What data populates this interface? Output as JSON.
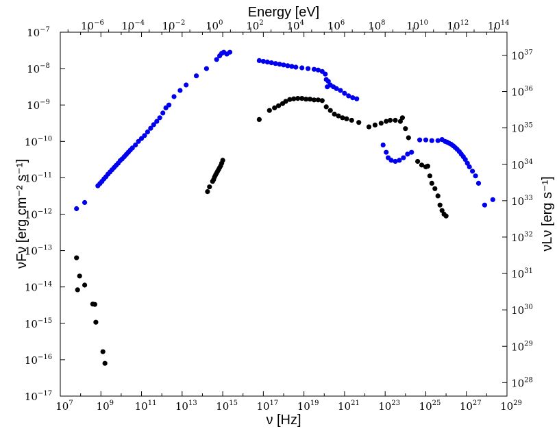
{
  "chart_data": {
    "type": "scatter",
    "title": "",
    "top_axis_label": "Energy [eV]",
    "xlabel": "ν [Hz]",
    "ylabel": "νFν [erg cm⁻² s⁻¹]",
    "right_ylabel": "νLν [erg s⁻¹]",
    "xscale": "log",
    "yscale": "log",
    "xlim_log10": [
      7,
      29
    ],
    "ylim_log10": [
      -17,
      -7
    ],
    "top_xlim_log10_eV": [
      -7.38,
      14.62
    ],
    "right_ylim_log10": [
      27.63,
      37.63
    ],
    "grid": false,
    "legend": null,
    "x_ticks": [
      {
        "value": 7,
        "base": "10",
        "exp": "7"
      },
      {
        "value": 9,
        "base": "10",
        "exp": "9"
      },
      {
        "value": 11,
        "base": "10",
        "exp": "11"
      },
      {
        "value": 13,
        "base": "10",
        "exp": "13"
      },
      {
        "value": 15,
        "base": "10",
        "exp": "15"
      },
      {
        "value": 17,
        "base": "10",
        "exp": "17"
      },
      {
        "value": 19,
        "base": "10",
        "exp": "19"
      },
      {
        "value": 21,
        "base": "10",
        "exp": "21"
      },
      {
        "value": 23,
        "base": "10",
        "exp": "23"
      },
      {
        "value": 25,
        "base": "10",
        "exp": "25"
      },
      {
        "value": 27,
        "base": "10",
        "exp": "27"
      },
      {
        "value": 29,
        "base": "10",
        "exp": "29"
      }
    ],
    "top_x_ticks": [
      {
        "value": -6,
        "base": "10",
        "exp": "−6"
      },
      {
        "value": -4,
        "base": "10",
        "exp": "−4"
      },
      {
        "value": -2,
        "base": "10",
        "exp": "−2"
      },
      {
        "value": 0,
        "base": "10",
        "exp": "0"
      },
      {
        "value": 2,
        "base": "10",
        "exp": "2"
      },
      {
        "value": 4,
        "base": "10",
        "exp": "4"
      },
      {
        "value": 6,
        "base": "10",
        "exp": "6"
      },
      {
        "value": 8,
        "base": "10",
        "exp": "8"
      },
      {
        "value": 10,
        "base": "10",
        "exp": "10"
      },
      {
        "value": 12,
        "base": "10",
        "exp": "12"
      },
      {
        "value": 14,
        "base": "10",
        "exp": "14"
      }
    ],
    "y_ticks": [
      {
        "value": -7,
        "base": "10",
        "exp": "−7"
      },
      {
        "value": -8,
        "base": "10",
        "exp": "−8"
      },
      {
        "value": -9,
        "base": "10",
        "exp": "−9"
      },
      {
        "value": -10,
        "base": "10",
        "exp": "−10"
      },
      {
        "value": -11,
        "base": "10",
        "exp": "−11"
      },
      {
        "value": -12,
        "base": "10",
        "exp": "−12"
      },
      {
        "value": -13,
        "base": "10",
        "exp": "−13"
      },
      {
        "value": -14,
        "base": "10",
        "exp": "−14"
      },
      {
        "value": -15,
        "base": "10",
        "exp": "−15"
      },
      {
        "value": -16,
        "base": "10",
        "exp": "−16"
      },
      {
        "value": -17,
        "base": "10",
        "exp": "−17"
      }
    ],
    "right_y_ticks": [
      {
        "value": 37,
        "base": "10",
        "exp": "37"
      },
      {
        "value": 36,
        "base": "10",
        "exp": "36"
      },
      {
        "value": 35,
        "base": "10",
        "exp": "35"
      },
      {
        "value": 34,
        "base": "10",
        "exp": "34"
      },
      {
        "value": 33,
        "base": "10",
        "exp": "33"
      },
      {
        "value": 32,
        "base": "10",
        "exp": "32"
      },
      {
        "value": 31,
        "base": "10",
        "exp": "31"
      },
      {
        "value": 30,
        "base": "10",
        "exp": "30"
      },
      {
        "value": 29,
        "base": "10",
        "exp": "29"
      },
      {
        "value": 28,
        "base": "10",
        "exp": "28"
      }
    ],
    "series": [
      {
        "color": "#0000ee",
        "points_log10": [
          [
            7.8,
            -11.85
          ],
          [
            8.2,
            -11.68
          ],
          [
            8.85,
            -11.22
          ],
          [
            8.95,
            -11.16
          ],
          [
            9.05,
            -11.1
          ],
          [
            9.15,
            -11.03
          ],
          [
            9.25,
            -10.97
          ],
          [
            9.35,
            -10.9
          ],
          [
            9.45,
            -10.84
          ],
          [
            9.55,
            -10.78
          ],
          [
            9.65,
            -10.72
          ],
          [
            9.75,
            -10.66
          ],
          [
            9.85,
            -10.6
          ],
          [
            9.95,
            -10.53
          ],
          [
            10.05,
            -10.48
          ],
          [
            10.15,
            -10.42
          ],
          [
            10.25,
            -10.36
          ],
          [
            10.35,
            -10.3
          ],
          [
            10.45,
            -10.24
          ],
          [
            10.55,
            -10.18
          ],
          [
            10.7,
            -10.1
          ],
          [
            10.85,
            -10.0
          ],
          [
            11.0,
            -9.92
          ],
          [
            11.15,
            -9.84
          ],
          [
            11.3,
            -9.74
          ],
          [
            11.45,
            -9.64
          ],
          [
            11.6,
            -9.54
          ],
          [
            11.75,
            -9.45
          ],
          [
            11.9,
            -9.35
          ],
          [
            12.05,
            -9.22
          ],
          [
            12.2,
            -9.08
          ],
          [
            12.35,
            -9.0
          ],
          [
            12.6,
            -8.77
          ],
          [
            12.9,
            -8.6
          ],
          [
            13.2,
            -8.45
          ],
          [
            13.7,
            -8.2
          ],
          [
            14.2,
            -8.0
          ],
          [
            14.7,
            -7.75
          ],
          [
            14.85,
            -7.65
          ],
          [
            14.95,
            -7.58
          ],
          [
            15.05,
            -7.55
          ],
          [
            15.2,
            -7.6
          ],
          [
            15.35,
            -7.55
          ],
          [
            16.8,
            -7.78
          ],
          [
            17.0,
            -7.8
          ],
          [
            17.2,
            -7.82
          ],
          [
            17.4,
            -7.84
          ],
          [
            17.6,
            -7.86
          ],
          [
            17.8,
            -7.88
          ],
          [
            18.0,
            -7.9
          ],
          [
            18.2,
            -7.92
          ],
          [
            18.4,
            -7.94
          ],
          [
            18.6,
            -7.96
          ],
          [
            18.9,
            -7.98
          ],
          [
            19.2,
            -8.0
          ],
          [
            19.5,
            -8.02
          ],
          [
            19.7,
            -8.04
          ],
          [
            19.9,
            -8.08
          ],
          [
            20.05,
            -8.15
          ],
          [
            20.1,
            -8.3
          ],
          [
            20.15,
            -8.5
          ],
          [
            20.2,
            -8.35
          ],
          [
            20.3,
            -8.45
          ],
          [
            20.45,
            -8.5
          ],
          [
            20.6,
            -8.55
          ],
          [
            20.8,
            -8.6
          ],
          [
            21.0,
            -8.68
          ],
          [
            21.2,
            -8.75
          ],
          [
            21.4,
            -8.8
          ],
          [
            21.6,
            -8.83
          ],
          [
            24.7,
            -9.96
          ],
          [
            25.0,
            -9.96
          ],
          [
            25.3,
            -9.98
          ],
          [
            25.6,
            -9.98
          ],
          [
            25.8,
            -9.95
          ],
          [
            25.95,
            -10.0
          ],
          [
            26.05,
            -10.02
          ],
          [
            26.15,
            -10.05
          ],
          [
            26.25,
            -10.08
          ],
          [
            26.35,
            -10.12
          ],
          [
            26.45,
            -10.17
          ],
          [
            26.55,
            -10.22
          ],
          [
            26.65,
            -10.28
          ],
          [
            26.75,
            -10.35
          ],
          [
            26.85,
            -10.42
          ],
          [
            26.95,
            -10.5
          ],
          [
            27.05,
            -10.6
          ],
          [
            27.15,
            -10.7
          ],
          [
            27.3,
            -10.82
          ],
          [
            27.45,
            -10.95
          ],
          [
            27.6,
            -11.15
          ],
          [
            27.9,
            -11.75
          ],
          [
            28.3,
            -11.6
          ]
        ]
      },
      {
        "color": "#0000ee",
        "points_log10": [
          [
            22.9,
            -10.1
          ],
          [
            23.05,
            -10.3
          ],
          [
            23.15,
            -10.45
          ],
          [
            23.3,
            -10.52
          ],
          [
            23.5,
            -10.55
          ],
          [
            23.7,
            -10.52
          ],
          [
            23.9,
            -10.45
          ],
          [
            24.1,
            -10.35
          ],
          [
            24.3,
            -10.3
          ]
        ]
      },
      {
        "color": "#000000",
        "points_log10": [
          [
            7.8,
            -13.2
          ],
          [
            7.85,
            -14.08
          ],
          [
            7.95,
            -13.7
          ],
          [
            8.2,
            -13.95
          ],
          [
            8.6,
            -14.47
          ],
          [
            8.7,
            -14.48
          ],
          [
            8.75,
            -14.97
          ],
          [
            9.1,
            -15.78
          ],
          [
            9.2,
            -16.1
          ],
          [
            14.25,
            -11.38
          ],
          [
            14.35,
            -11.25
          ],
          [
            14.5,
            -11.1
          ],
          [
            14.55,
            -11.05
          ],
          [
            14.6,
            -10.98
          ],
          [
            14.65,
            -10.92
          ],
          [
            14.7,
            -10.87
          ],
          [
            14.75,
            -10.82
          ],
          [
            14.8,
            -10.77
          ],
          [
            14.85,
            -10.72
          ],
          [
            14.9,
            -10.67
          ],
          [
            14.95,
            -10.6
          ],
          [
            15.0,
            -10.52
          ],
          [
            16.8,
            -9.4
          ],
          [
            17.3,
            -9.15
          ],
          [
            17.55,
            -9.08
          ],
          [
            17.75,
            -9.02
          ],
          [
            17.95,
            -8.96
          ],
          [
            18.1,
            -8.9
          ],
          [
            18.3,
            -8.85
          ],
          [
            18.5,
            -8.83
          ],
          [
            18.7,
            -8.82
          ],
          [
            18.9,
            -8.82
          ],
          [
            19.1,
            -8.84
          ],
          [
            19.3,
            -8.84
          ],
          [
            19.5,
            -8.86
          ],
          [
            19.7,
            -8.86
          ],
          [
            19.9,
            -8.88
          ],
          [
            20.1,
            -9.05
          ],
          [
            20.3,
            -9.15
          ],
          [
            20.5,
            -9.25
          ],
          [
            20.7,
            -9.3
          ],
          [
            20.9,
            -9.35
          ],
          [
            21.1,
            -9.38
          ],
          [
            21.35,
            -9.42
          ],
          [
            21.7,
            -9.48
          ],
          [
            22.2,
            -9.6
          ],
          [
            22.5,
            -9.55
          ],
          [
            22.8,
            -9.5
          ],
          [
            23.05,
            -9.45
          ],
          [
            23.25,
            -9.42
          ],
          [
            23.5,
            -9.42
          ],
          [
            23.75,
            -9.45
          ],
          [
            23.85,
            -9.35
          ],
          [
            24.0,
            -9.65
          ],
          [
            24.15,
            -9.9
          ],
          [
            24.6,
            -10.55
          ],
          [
            24.8,
            -10.65
          ],
          [
            25.0,
            -10.7
          ],
          [
            25.1,
            -10.68
          ],
          [
            25.2,
            -10.95
          ],
          [
            25.3,
            -11.15
          ],
          [
            25.45,
            -11.3
          ],
          [
            25.6,
            -11.5
          ],
          [
            25.7,
            -11.75
          ],
          [
            25.8,
            -11.9
          ],
          [
            25.9,
            -12.0
          ],
          [
            26.0,
            -12.05
          ]
        ]
      }
    ]
  }
}
